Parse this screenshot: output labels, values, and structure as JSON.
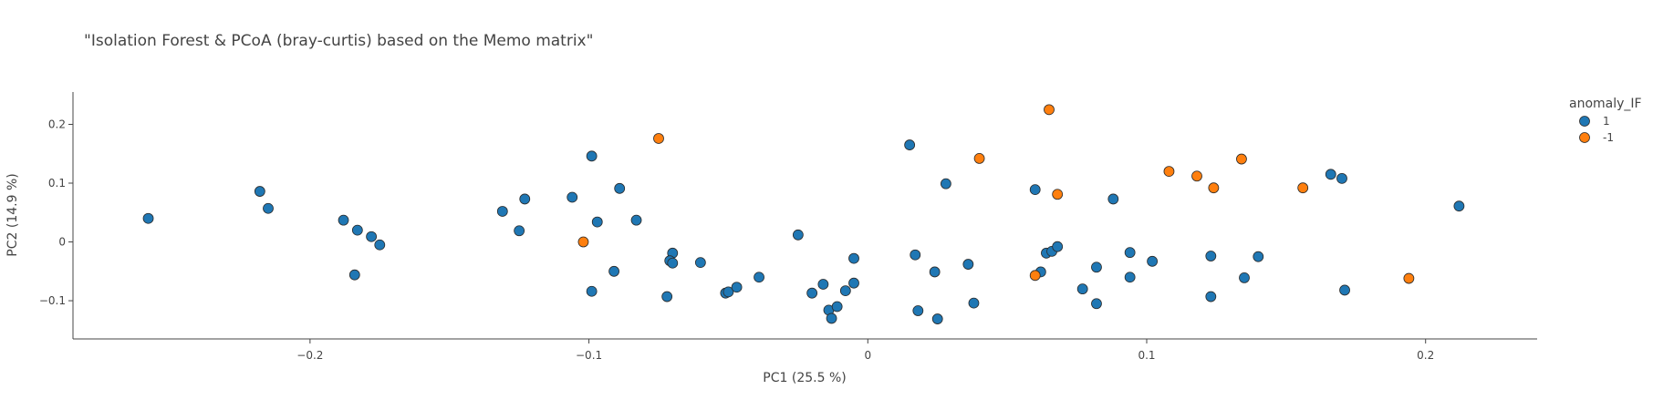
{
  "chart_data": {
    "type": "scatter",
    "title": "\"Isolation Forest & PCoA (bray-curtis) based on the Memo matrix\"",
    "xlabel": "PC1 (25.5 %)",
    "ylabel": "PC2 (14.9 %)",
    "xlim": [
      -0.285,
      0.24
    ],
    "ylim": [
      -0.165,
      0.255
    ],
    "xticks": [
      -0.2,
      -0.1,
      0,
      0.1,
      0.2
    ],
    "xtick_labels": [
      "−0.2",
      "−0.1",
      "0",
      "0.1",
      "0.2"
    ],
    "yticks": [
      -0.1,
      0,
      0.1,
      0.2
    ],
    "ytick_labels": [
      "−0.1",
      "0",
      "0.1",
      "0.2"
    ],
    "grid": false,
    "legend": {
      "title": "anomaly_IF",
      "placement": "top-right"
    },
    "series": [
      {
        "name": "1",
        "color": "#1f77b4",
        "points": [
          [
            -0.258,
            0.04
          ],
          [
            -0.218,
            0.086
          ],
          [
            -0.215,
            0.057
          ],
          [
            -0.188,
            0.037
          ],
          [
            -0.183,
            0.02
          ],
          [
            -0.178,
            0.009
          ],
          [
            -0.175,
            -0.005
          ],
          [
            -0.184,
            -0.056
          ],
          [
            -0.131,
            0.052
          ],
          [
            -0.125,
            0.019
          ],
          [
            -0.123,
            0.073
          ],
          [
            -0.106,
            0.076
          ],
          [
            -0.099,
            0.146
          ],
          [
            -0.097,
            0.034
          ],
          [
            -0.089,
            0.091
          ],
          [
            -0.083,
            0.037
          ],
          [
            -0.091,
            -0.05
          ],
          [
            -0.099,
            -0.084
          ],
          [
            -0.072,
            -0.093
          ],
          [
            -0.07,
            -0.019
          ],
          [
            -0.071,
            -0.032
          ],
          [
            -0.07,
            -0.036
          ],
          [
            -0.06,
            -0.035
          ],
          [
            -0.051,
            -0.087
          ],
          [
            -0.05,
            -0.085
          ],
          [
            -0.047,
            -0.077
          ],
          [
            -0.039,
            -0.06
          ],
          [
            -0.025,
            0.012
          ],
          [
            -0.02,
            -0.087
          ],
          [
            -0.016,
            -0.072
          ],
          [
            -0.014,
            -0.116
          ],
          [
            -0.013,
            -0.13
          ],
          [
            -0.011,
            -0.11
          ],
          [
            -0.008,
            -0.083
          ],
          [
            -0.005,
            -0.07
          ],
          [
            -0.005,
            -0.028
          ],
          [
            0.015,
            0.165
          ],
          [
            0.017,
            -0.022
          ],
          [
            0.018,
            -0.117
          ],
          [
            0.024,
            -0.051
          ],
          [
            0.025,
            -0.131
          ],
          [
            0.028,
            0.099
          ],
          [
            0.036,
            -0.038
          ],
          [
            0.038,
            -0.104
          ],
          [
            0.06,
            0.089
          ],
          [
            0.062,
            -0.051
          ],
          [
            0.064,
            -0.019
          ],
          [
            0.066,
            -0.016
          ],
          [
            0.068,
            -0.008
          ],
          [
            0.077,
            -0.08
          ],
          [
            0.082,
            -0.043
          ],
          [
            0.082,
            -0.105
          ],
          [
            0.088,
            0.073
          ],
          [
            0.094,
            -0.018
          ],
          [
            0.094,
            -0.06
          ],
          [
            0.102,
            -0.033
          ],
          [
            0.123,
            -0.024
          ],
          [
            0.123,
            -0.093
          ],
          [
            0.135,
            -0.061
          ],
          [
            0.14,
            -0.025
          ],
          [
            0.166,
            0.115
          ],
          [
            0.17,
            0.108
          ],
          [
            0.171,
            -0.082
          ],
          [
            0.212,
            0.061
          ]
        ]
      },
      {
        "name": "-1",
        "color": "#ff7f0e",
        "points": [
          [
            -0.075,
            0.176
          ],
          [
            -0.102,
            0.0
          ],
          [
            0.04,
            0.142
          ],
          [
            0.065,
            0.225
          ],
          [
            0.068,
            0.081
          ],
          [
            0.06,
            -0.057
          ],
          [
            0.108,
            0.12
          ],
          [
            0.118,
            0.112
          ],
          [
            0.124,
            0.092
          ],
          [
            0.134,
            0.141
          ],
          [
            0.156,
            0.092
          ],
          [
            0.194,
            -0.062
          ]
        ]
      }
    ]
  }
}
